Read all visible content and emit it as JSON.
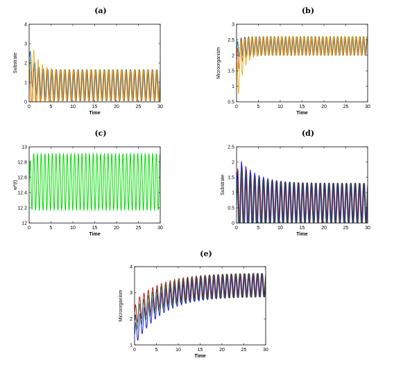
{
  "chart_data": [
    {
      "panel": "(a)",
      "type": "line",
      "xlabel": "Time",
      "ylabel": "Substrate",
      "xlim": [
        0,
        30
      ],
      "ylim": [
        0,
        4
      ],
      "xticks": [
        "0",
        "5",
        "10",
        "15",
        "20",
        "25",
        "30"
      ],
      "yticks": [
        "0",
        "1",
        "2",
        "3",
        "4"
      ],
      "series": [
        {
          "color": "#0072BD",
          "start": 2.3,
          "equilibrium": 0.85,
          "amplitude": 0.8,
          "period": 1.0,
          "transient_amp": 0.0,
          "decay": 1.0
        },
        {
          "color": "#D95319",
          "start": 0.6,
          "equilibrium": 0.85,
          "amplitude": 0.8,
          "period": 1.0,
          "transient_amp": 0.9,
          "decay": 1.0
        },
        {
          "color": "#EDB120",
          "start": 1.0,
          "equilibrium": 0.85,
          "amplitude": 0.8,
          "period": 1.0,
          "transient_amp": 1.9,
          "decay": 1.5
        }
      ]
    },
    {
      "panel": "(b)",
      "type": "line",
      "xlabel": "Time",
      "ylabel": "Microorganism",
      "xlim": [
        0,
        30
      ],
      "ylim": [
        0.5,
        3
      ],
      "xticks": [
        "0",
        "5",
        "10",
        "15",
        "20",
        "25",
        "30"
      ],
      "yticks": [
        "0.5",
        "1",
        "1.5",
        "2",
        "2.5",
        "3"
      ],
      "series": [
        {
          "color": "#0072BD",
          "start": 2.2,
          "equilibrium": 2.3,
          "amplitude": 0.3,
          "period": 0.85,
          "transient_amp": 0.0,
          "decay": 1.0
        },
        {
          "color": "#D95319",
          "start": 1.8,
          "equilibrium": 2.3,
          "amplitude": 0.3,
          "period": 0.85,
          "transient_amp": 0.3,
          "decay": 1.0
        },
        {
          "color": "#EDB120",
          "start": 1.2,
          "equilibrium": 2.3,
          "amplitude": 0.3,
          "period": 0.85,
          "transient_amp": 0.8,
          "decay": 1.2
        }
      ]
    },
    {
      "panel": "(c)",
      "type": "line",
      "xlabel": "Time",
      "ylabel": "w*(t)",
      "xlim": [
        0,
        30
      ],
      "ylim": [
        12,
        13
      ],
      "xticks": [
        "0",
        "5",
        "10",
        "15",
        "20",
        "25",
        "30"
      ],
      "yticks": [
        "12",
        "12.2",
        "12.4",
        "12.6",
        "12.8",
        "13"
      ],
      "series": [
        {
          "color": "#00DD00",
          "start": 12.54,
          "equilibrium": 12.54,
          "amplitude": 0.37,
          "period": 0.85,
          "transient_amp": 0.0,
          "decay": 1.0
        }
      ]
    },
    {
      "panel": "(d)",
      "type": "line",
      "xlabel": "Time",
      "ylabel": "Substrate",
      "xlim": [
        0,
        30
      ],
      "ylim": [
        0,
        2.5
      ],
      "xticks": [
        "0",
        "5",
        "10",
        "15",
        "20",
        "25",
        "30"
      ],
      "yticks": [
        "0",
        "0.5",
        "1",
        "1.5",
        "2",
        "2.5"
      ],
      "series": [
        {
          "color": "#C0181A",
          "start": 0.9,
          "equilibrium": 0.65,
          "amplitude": 0.65,
          "period": 1.0,
          "transient_amp": 0.5,
          "decay": 4.0
        },
        {
          "color": "#1A1AE6",
          "start": 0.6,
          "equilibrium": 0.65,
          "amplitude": 0.65,
          "period": 1.0,
          "transient_amp": 1.0,
          "decay": 4.0
        },
        {
          "color": "#1E5C3A",
          "start": 0.7,
          "equilibrium": 0.65,
          "amplitude": 0.65,
          "period": 1.0,
          "transient_amp": 0.5,
          "decay": 4.0
        }
      ]
    },
    {
      "panel": "(e)",
      "type": "line",
      "xlabel": "Time",
      "ylabel": "Microorganism",
      "xlim": [
        0,
        30
      ],
      "ylim": [
        1,
        4
      ],
      "xticks": [
        "0",
        "5",
        "10",
        "15",
        "20",
        "25",
        "30"
      ],
      "yticks": [
        "1",
        "2",
        "3",
        "4"
      ],
      "series": [
        {
          "color": "#1A1AE6",
          "start": 1.4,
          "equilibrium": 3.3,
          "amplitude": 0.45,
          "period": 1.0,
          "transient_amp": 0.0,
          "decay": 6.0
        },
        {
          "color": "#C0181A",
          "start": 2.2,
          "equilibrium": 3.3,
          "amplitude": 0.45,
          "period": 1.0,
          "transient_amp": 0.0,
          "decay": 6.0
        },
        {
          "color": "#1E5C3A",
          "start": 1.9,
          "equilibrium": 3.3,
          "amplitude": 0.45,
          "period": 1.0,
          "transient_amp": 0.0,
          "decay": 6.0
        }
      ]
    }
  ]
}
